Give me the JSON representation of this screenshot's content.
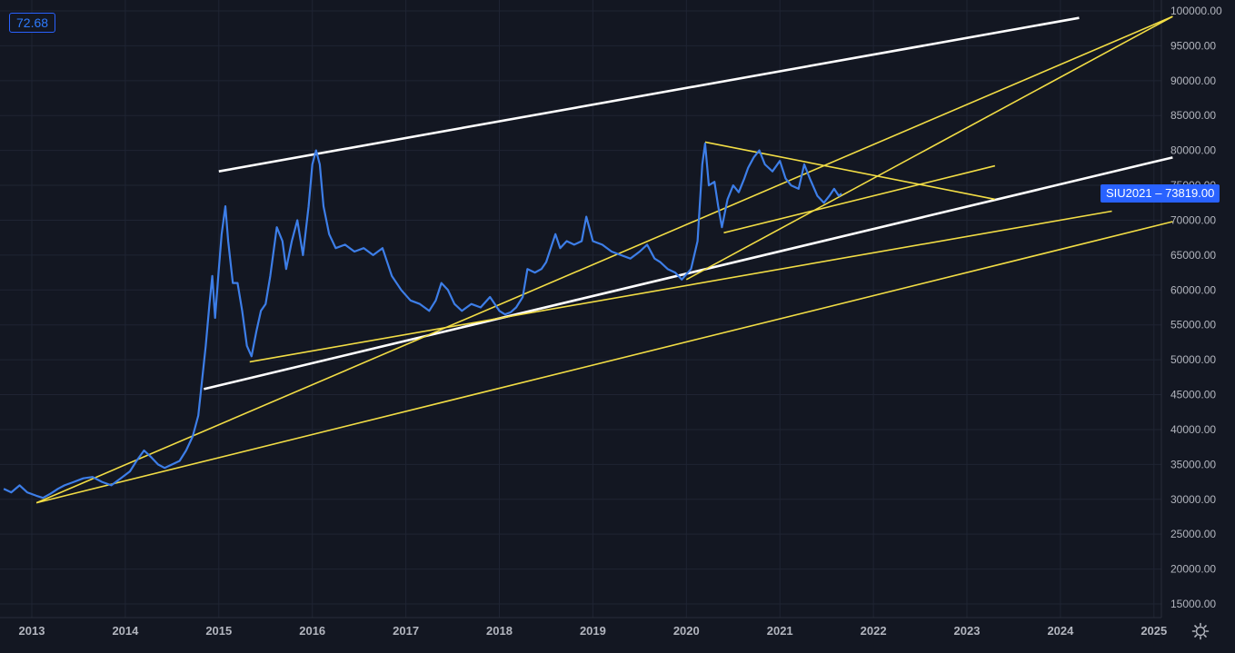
{
  "indicator": {
    "value": "72.68"
  },
  "price_tag": {
    "symbol": "SIU2021",
    "separator": "–",
    "value": "73819.00"
  },
  "colors": {
    "background": "#131722",
    "grid": "#1f2433",
    "price_line": "#3d7ee8",
    "trend_white": "#ffffff",
    "trend_yellow": "#f2dd45",
    "axis_text": "#b2b5be",
    "accent": "#2962ff"
  },
  "settings_icon": "gear-icon",
  "chart_data": {
    "type": "line",
    "title": "",
    "xlabel": "",
    "ylabel": "",
    "x_ticks": [
      "2013",
      "2014",
      "2015",
      "2016",
      "2017",
      "2018",
      "2019",
      "2020",
      "2021",
      "2022",
      "2023",
      "2024",
      "2025"
    ],
    "y_ticks": [
      "15000.00",
      "20000.00",
      "25000.00",
      "30000.00",
      "35000.00",
      "40000.00",
      "45000.00",
      "50000.00",
      "55000.00",
      "60000.00",
      "65000.00",
      "70000.00",
      "75000.00",
      "80000.00",
      "85000.00",
      "90000.00",
      "95000.00",
      "100000.00"
    ],
    "xlim": [
      2012.7,
      2025.2
    ],
    "ylim": [
      14000,
      101000
    ],
    "grid": true,
    "series": [
      {
        "points": [
          [
            2012.7,
            31500
          ],
          [
            2012.78,
            31000
          ],
          [
            2012.87,
            32000
          ],
          [
            2012.95,
            31000
          ],
          [
            2013.05,
            30500
          ],
          [
            2013.12,
            30200
          ],
          [
            2013.2,
            30800
          ],
          [
            2013.28,
            31500
          ],
          [
            2013.35,
            32000
          ],
          [
            2013.45,
            32500
          ],
          [
            2013.55,
            33000
          ],
          [
            2013.65,
            33200
          ],
          [
            2013.75,
            32500
          ],
          [
            2013.85,
            32000
          ],
          [
            2013.95,
            33000
          ],
          [
            2014.05,
            34000
          ],
          [
            2014.12,
            35500
          ],
          [
            2014.2,
            37000
          ],
          [
            2014.28,
            36000
          ],
          [
            2014.35,
            35000
          ],
          [
            2014.42,
            34500
          ],
          [
            2014.5,
            35000
          ],
          [
            2014.58,
            35500
          ],
          [
            2014.65,
            37000
          ],
          [
            2014.72,
            39000
          ],
          [
            2014.78,
            42000
          ],
          [
            2014.82,
            47000
          ],
          [
            2014.86,
            52000
          ],
          [
            2014.9,
            58000
          ],
          [
            2014.93,
            62000
          ],
          [
            2014.96,
            56000
          ],
          [
            2015.0,
            63000
          ],
          [
            2015.03,
            68000
          ],
          [
            2015.07,
            72000
          ],
          [
            2015.1,
            67000
          ],
          [
            2015.15,
            61000
          ],
          [
            2015.2,
            61000
          ],
          [
            2015.25,
            57000
          ],
          [
            2015.3,
            52000
          ],
          [
            2015.35,
            50500
          ],
          [
            2015.4,
            54000
          ],
          [
            2015.45,
            57000
          ],
          [
            2015.5,
            58000
          ],
          [
            2015.55,
            62000
          ],
          [
            2015.62,
            69000
          ],
          [
            2015.68,
            67000
          ],
          [
            2015.72,
            63000
          ],
          [
            2015.78,
            67000
          ],
          [
            2015.84,
            70000
          ],
          [
            2015.9,
            65000
          ],
          [
            2015.96,
            72000
          ],
          [
            2016.0,
            78000
          ],
          [
            2016.04,
            80000
          ],
          [
            2016.08,
            78000
          ],
          [
            2016.12,
            72000
          ],
          [
            2016.18,
            68000
          ],
          [
            2016.25,
            66000
          ],
          [
            2016.35,
            66500
          ],
          [
            2016.45,
            65500
          ],
          [
            2016.55,
            66000
          ],
          [
            2016.65,
            65000
          ],
          [
            2016.75,
            66000
          ],
          [
            2016.85,
            62000
          ],
          [
            2016.95,
            60000
          ],
          [
            2017.05,
            58500
          ],
          [
            2017.15,
            58000
          ],
          [
            2017.25,
            57000
          ],
          [
            2017.32,
            58500
          ],
          [
            2017.38,
            61000
          ],
          [
            2017.45,
            60000
          ],
          [
            2017.52,
            58000
          ],
          [
            2017.6,
            57000
          ],
          [
            2017.7,
            58000
          ],
          [
            2017.8,
            57500
          ],
          [
            2017.9,
            59000
          ],
          [
            2018.0,
            57000
          ],
          [
            2018.06,
            56500
          ],
          [
            2018.12,
            56800
          ],
          [
            2018.18,
            57500
          ],
          [
            2018.25,
            59000
          ],
          [
            2018.3,
            63000
          ],
          [
            2018.38,
            62500
          ],
          [
            2018.45,
            63000
          ],
          [
            2018.5,
            64000
          ],
          [
            2018.55,
            66000
          ],
          [
            2018.6,
            68000
          ],
          [
            2018.65,
            66000
          ],
          [
            2018.72,
            67000
          ],
          [
            2018.8,
            66500
          ],
          [
            2018.88,
            67000
          ],
          [
            2018.93,
            70500
          ],
          [
            2019.0,
            67000
          ],
          [
            2019.1,
            66500
          ],
          [
            2019.2,
            65500
          ],
          [
            2019.3,
            65000
          ],
          [
            2019.4,
            64500
          ],
          [
            2019.5,
            65500
          ],
          [
            2019.58,
            66500
          ],
          [
            2019.66,
            64500
          ],
          [
            2019.72,
            64000
          ],
          [
            2019.8,
            63000
          ],
          [
            2019.88,
            62500
          ],
          [
            2019.95,
            61500
          ],
          [
            2020.05,
            63000
          ],
          [
            2020.12,
            67000
          ],
          [
            2020.17,
            78000
          ],
          [
            2020.2,
            81000
          ],
          [
            2020.24,
            75000
          ],
          [
            2020.3,
            75500
          ],
          [
            2020.34,
            72000
          ],
          [
            2020.38,
            69000
          ],
          [
            2020.44,
            73000
          ],
          [
            2020.5,
            75000
          ],
          [
            2020.56,
            74000
          ],
          [
            2020.62,
            76000
          ],
          [
            2020.66,
            77500
          ],
          [
            2020.72,
            79000
          ],
          [
            2020.78,
            80000
          ],
          [
            2020.84,
            78000
          ],
          [
            2020.92,
            77000
          ],
          [
            2021.0,
            78500
          ],
          [
            2021.06,
            76000
          ],
          [
            2021.12,
            75000
          ],
          [
            2021.2,
            74500
          ],
          [
            2021.26,
            78000
          ],
          [
            2021.32,
            76000
          ],
          [
            2021.4,
            73500
          ],
          [
            2021.47,
            72500
          ],
          [
            2021.53,
            73500
          ],
          [
            2021.58,
            74500
          ],
          [
            2021.63,
            73500
          ],
          [
            2021.66,
            73819
          ]
        ]
      }
    ],
    "trend_lines": [
      {
        "color": "white",
        "from": [
          2015.0,
          77000
        ],
        "to": [
          2024.2,
          99000
        ]
      },
      {
        "color": "white",
        "from": [
          2014.84,
          45800
        ],
        "to": [
          2025.2,
          79000
        ]
      },
      {
        "color": "yellow",
        "from": [
          2013.05,
          29500
        ],
        "to": [
          2025.2,
          99200
        ]
      },
      {
        "color": "yellow",
        "from": [
          2013.05,
          29500
        ],
        "to": [
          2025.2,
          69800
        ]
      },
      {
        "color": "yellow",
        "from": [
          2015.33,
          49700
        ],
        "to": [
          2024.55,
          71300
        ]
      },
      {
        "color": "yellow",
        "from": [
          2020.0,
          61500
        ],
        "to": [
          2025.2,
          99200
        ]
      },
      {
        "color": "yellow",
        "from": [
          2020.2,
          81200
        ],
        "to": [
          2023.3,
          73000
        ]
      },
      {
        "color": "yellow",
        "from": [
          2020.4,
          68200
        ],
        "to": [
          2023.3,
          77800
        ]
      }
    ]
  }
}
